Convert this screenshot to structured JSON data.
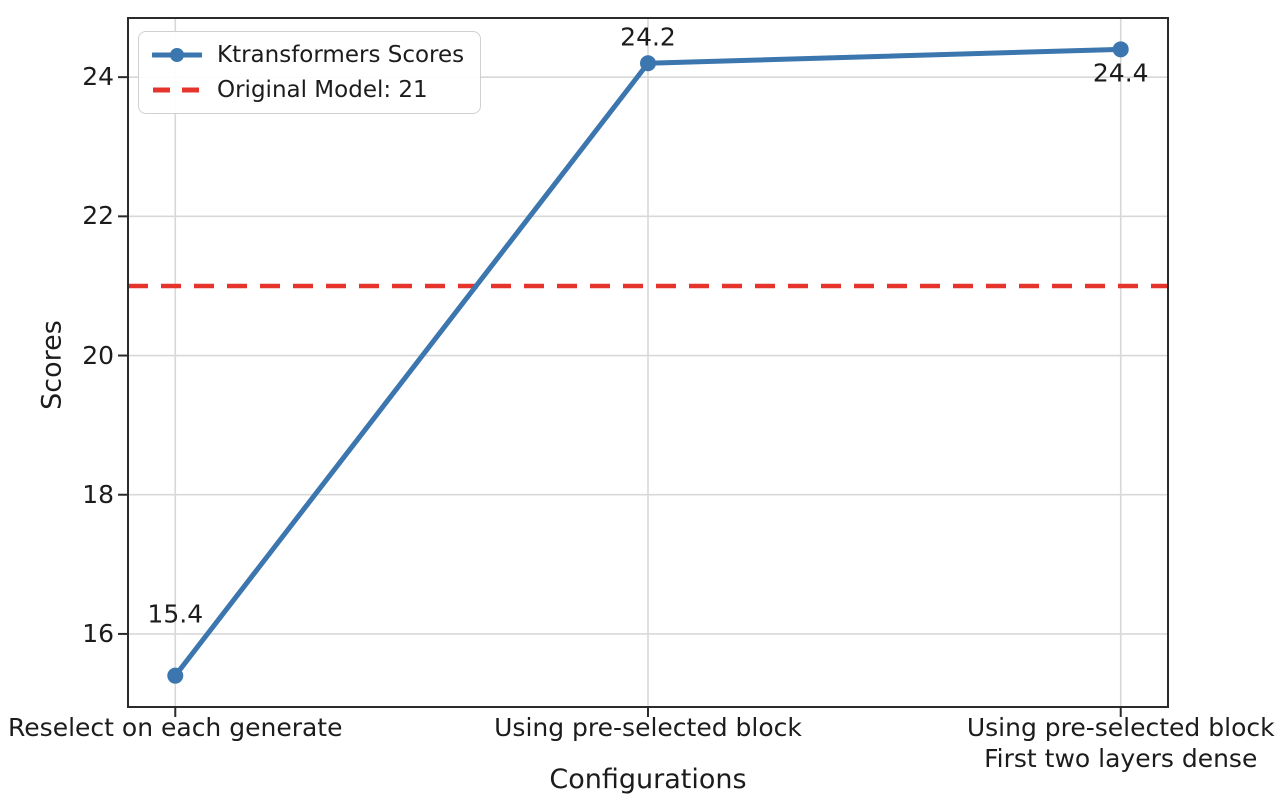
{
  "chart_data": {
    "type": "line",
    "title": "",
    "xlabel": "Configurations",
    "ylabel": "Scores",
    "categories": [
      "Reselect on each generate",
      "Using pre-selected block",
      "Using pre-selected block\nFirst two layers dense"
    ],
    "x": [
      0,
      1,
      2
    ],
    "series": [
      {
        "name": "Ktransformers Scores",
        "values": [
          15.4,
          24.2,
          24.4
        ],
        "color": "#3b76af",
        "marker": "circle"
      }
    ],
    "data_labels": [
      "15.4",
      "24.2",
      "24.4"
    ],
    "ref_line": {
      "label": "Original Model: 21",
      "value": 21,
      "color": "#e5342c",
      "style": "dashed"
    },
    "yticks": [
      16,
      18,
      20,
      22,
      24
    ],
    "ylim": [
      14.95,
      24.85
    ],
    "xlim": [
      -0.1,
      2.1
    ],
    "grid": true,
    "legend_position": "upper left"
  }
}
